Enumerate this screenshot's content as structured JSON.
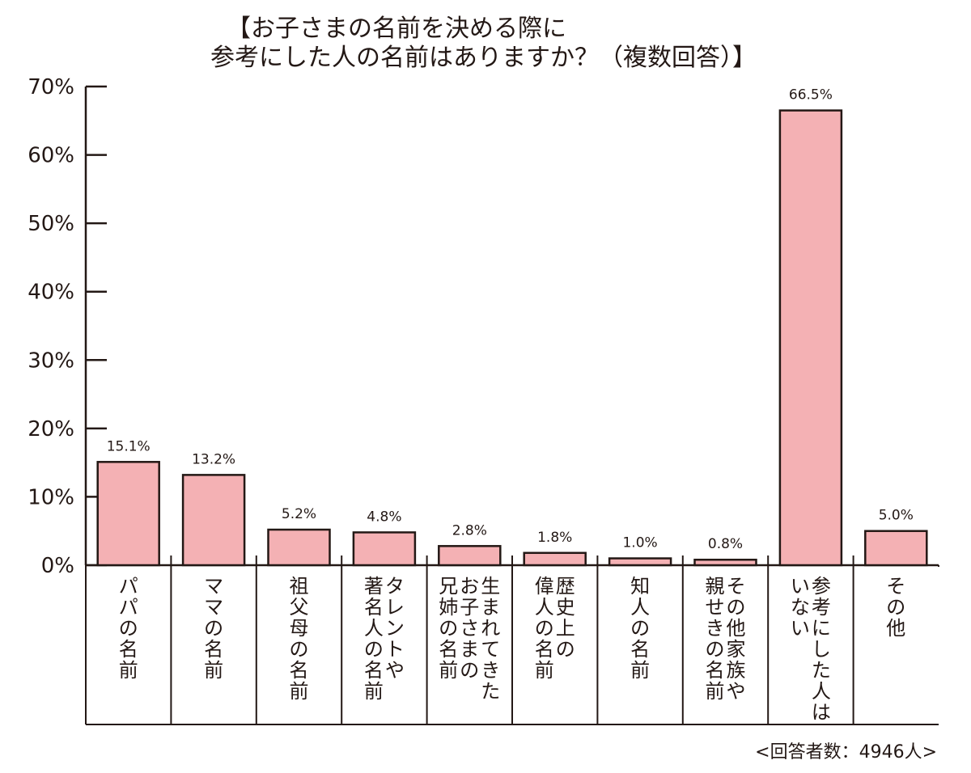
{
  "title": {
    "line1": "【お子さまの名前を決める際に",
    "line2": "参考にした人の名前はありますか？（複数回答）】"
  },
  "footnote": "<回答者数：4946人>",
  "colors": {
    "bar_fill": "#f4b1b4",
    "stroke": "#231815"
  },
  "chart_data": {
    "type": "bar",
    "title": "【お子さまの名前を決める際に参考にした人の名前はありますか？（複数回答）】",
    "categories": [
      "パパの名前",
      "ママの名前",
      "祖父母の名前",
      "タレントや著名人の名前",
      "生まれてきたお子さまの兄姉の名前",
      "歴史上の偉人の名前",
      "知人の名前",
      "その他家族や親せきの名前",
      "参考にした人はいない",
      "その他"
    ],
    "category_lines": [
      [
        "パパの名前"
      ],
      [
        "ママの名前"
      ],
      [
        "祖父母の名前"
      ],
      [
        "タレントや",
        "著名人の名前"
      ],
      [
        "生まれてきた",
        "お子さまの",
        "兄姉の名前"
      ],
      [
        "歴史上の",
        "偉人の名前"
      ],
      [
        "知人の名前"
      ],
      [
        "その他家族や",
        "親せきの名前"
      ],
      [
        "参考にした人は",
        "いない"
      ],
      [
        "その他"
      ]
    ],
    "values": [
      15.1,
      13.2,
      5.2,
      4.8,
      2.8,
      1.8,
      1.0,
      0.8,
      66.5,
      5.0
    ],
    "value_labels": [
      "15.1%",
      "13.2%",
      "5.2%",
      "4.8%",
      "2.8%",
      "1.8%",
      "1.0%",
      "0.8%",
      "66.5%",
      "5.0%"
    ],
    "yticks": [
      0,
      10,
      20,
      30,
      40,
      50,
      60,
      70
    ],
    "ytick_labels": [
      "0%",
      "10%",
      "20%",
      "30%",
      "40%",
      "50%",
      "60%",
      "70%"
    ],
    "ylim": [
      0,
      70
    ],
    "grid": false,
    "legend": "none"
  }
}
